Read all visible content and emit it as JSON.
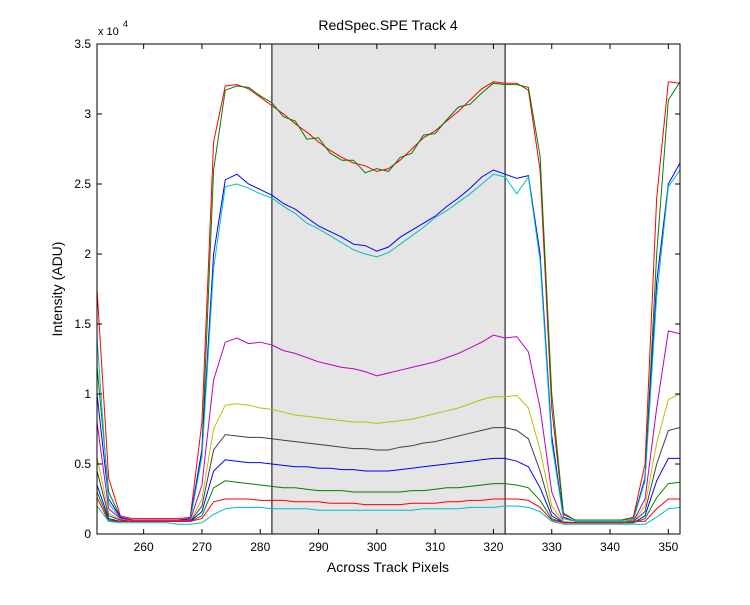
{
  "chart_data": {
    "type": "line",
    "title": "RedSpec.SPE   Track 4",
    "x_label": "Across Track Pixels",
    "y_label": "Intensity (ADU)",
    "y_multiplier": {
      "base": "x 10",
      "exponent": "4"
    },
    "xlim": [
      252,
      352
    ],
    "ylim": [
      0,
      35000
    ],
    "xticks": [
      260,
      270,
      280,
      290,
      300,
      310,
      320,
      330,
      340,
      350
    ],
    "yticks": [
      {
        "value": 0,
        "label": "0"
      },
      {
        "value": 5000,
        "label": "0.5"
      },
      {
        "value": 10000,
        "label": "1"
      },
      {
        "value": 15000,
        "label": "1.5"
      },
      {
        "value": 20000,
        "label": "2"
      },
      {
        "value": 25000,
        "label": "2.5"
      },
      {
        "value": 30000,
        "label": "3"
      },
      {
        "value": 35000,
        "label": "3.5"
      }
    ],
    "grid": false,
    "shaded_region": [
      282,
      322
    ],
    "shaded_color": "#e5e5e5",
    "x": [
      252,
      254,
      256,
      258,
      260,
      262,
      264,
      266,
      268,
      270,
      272,
      274,
      276,
      278,
      280,
      282,
      284,
      286,
      288,
      290,
      292,
      294,
      296,
      298,
      300,
      302,
      304,
      306,
      308,
      310,
      312,
      314,
      316,
      318,
      320,
      322,
      324,
      326,
      328,
      330,
      332,
      334,
      336,
      338,
      340,
      342,
      344,
      346,
      348,
      350,
      352
    ],
    "series": [
      {
        "color": "#ff0000",
        "values": [
          17500,
          4000,
          1300,
          1100,
          1100,
          1100,
          1100,
          1100,
          1200,
          8000,
          28000,
          32000,
          32100,
          31800,
          31200,
          30600,
          30000,
          29300,
          28700,
          28000,
          27400,
          26900,
          26500,
          26300,
          25900,
          26100,
          26700,
          27500,
          28300,
          28800,
          29500,
          30200,
          31000,
          31800,
          32300,
          32200,
          32200,
          31700,
          26000,
          9000,
          1400,
          1000,
          1000,
          1000,
          1000,
          1000,
          1200,
          5000,
          24000,
          32300,
          32200
        ]
      },
      {
        "color": "#008000",
        "values": [
          12000,
          3000,
          1200,
          1000,
          1000,
          1000,
          1000,
          1000,
          1100,
          6000,
          26000,
          31700,
          32000,
          31900,
          31300,
          30800,
          29800,
          29500,
          28200,
          28300,
          27200,
          26700,
          26700,
          25800,
          26100,
          25900,
          26900,
          27200,
          28500,
          28600,
          29600,
          30500,
          30700,
          31500,
          32200,
          32100,
          32100,
          31900,
          27000,
          10000,
          1500,
          1000,
          1000,
          1000,
          1000,
          1000,
          1100,
          4000,
          20000,
          31000,
          32300
        ]
      },
      {
        "color": "#0000ff",
        "values": [
          10000,
          2500,
          1200,
          1000,
          1000,
          1000,
          1000,
          1000,
          1100,
          6000,
          20000,
          25300,
          25700,
          25000,
          24600,
          24200,
          23600,
          23200,
          22600,
          22000,
          21600,
          21200,
          20700,
          20600,
          20200,
          20500,
          21200,
          21700,
          22200,
          22700,
          23400,
          24000,
          24700,
          25500,
          26000,
          25700,
          25400,
          25600,
          20000,
          7000,
          1200,
          900,
          900,
          900,
          900,
          900,
          1000,
          4000,
          18000,
          25000,
          26500
        ]
      },
      {
        "color": "#00bfbf",
        "values": [
          14000,
          2200,
          1100,
          1000,
          1000,
          1000,
          1000,
          1000,
          1000,
          5500,
          19000,
          24800,
          25000,
          24700,
          24300,
          24000,
          23400,
          22900,
          22200,
          21800,
          21300,
          20800,
          20300,
          20000,
          19800,
          20100,
          20700,
          21300,
          21900,
          22600,
          23100,
          23700,
          24300,
          25000,
          25700,
          25500,
          24300,
          25500,
          19500,
          6500,
          1100,
          900,
          900,
          900,
          900,
          900,
          1000,
          3800,
          17000,
          24800,
          26000
        ]
      },
      {
        "color": "#bf00bf",
        "values": [
          8000,
          1800,
          1100,
          1000,
          1000,
          1000,
          1000,
          1000,
          1000,
          3500,
          11000,
          13700,
          14000,
          13600,
          13700,
          13500,
          13100,
          12900,
          12600,
          12300,
          12100,
          11900,
          11800,
          11600,
          11300,
          11500,
          11700,
          11900,
          12100,
          12300,
          12600,
          12900,
          13300,
          13700,
          14200,
          14000,
          14100,
          13000,
          9000,
          3000,
          900,
          800,
          800,
          800,
          800,
          800,
          900,
          2500,
          9000,
          14500,
          14300
        ]
      },
      {
        "color": "#bfbf00",
        "values": [
          5500,
          1500,
          1000,
          900,
          900,
          900,
          900,
          900,
          900,
          2500,
          7500,
          9200,
          9300,
          9200,
          9000,
          8900,
          8700,
          8500,
          8400,
          8300,
          8200,
          8100,
          8000,
          8000,
          7900,
          8000,
          8100,
          8200,
          8400,
          8600,
          8800,
          9000,
          9300,
          9600,
          9800,
          9800,
          9900,
          9000,
          6000,
          2000,
          900,
          800,
          800,
          800,
          800,
          800,
          900,
          2000,
          6500,
          9600,
          10000
        ]
      },
      {
        "color": "#404040",
        "values": [
          4500,
          1300,
          1000,
          900,
          900,
          900,
          900,
          900,
          900,
          2000,
          6000,
          7100,
          7000,
          6900,
          6900,
          6800,
          6700,
          6600,
          6500,
          6400,
          6300,
          6200,
          6100,
          6100,
          6000,
          6000,
          6200,
          6300,
          6500,
          6600,
          6800,
          7000,
          7200,
          7400,
          7600,
          7600,
          7400,
          6800,
          4500,
          1600,
          800,
          800,
          800,
          800,
          800,
          800,
          900,
          1600,
          5000,
          7400,
          7600
        ]
      },
      {
        "color": "#0000ff",
        "values": [
          3500,
          1100,
          900,
          900,
          900,
          900,
          900,
          900,
          900,
          1600,
          4500,
          5300,
          5200,
          5100,
          5100,
          5000,
          4900,
          4800,
          4800,
          4700,
          4700,
          4600,
          4600,
          4500,
          4500,
          4500,
          4600,
          4700,
          4800,
          4900,
          5000,
          5100,
          5200,
          5300,
          5400,
          5400,
          5200,
          4800,
          3300,
          1300,
          800,
          800,
          800,
          800,
          800,
          800,
          800,
          1300,
          3800,
          5400,
          5400
        ]
      },
      {
        "color": "#008000",
        "values": [
          3000,
          1000,
          900,
          900,
          900,
          900,
          900,
          900,
          900,
          1300,
          3300,
          3800,
          3700,
          3600,
          3500,
          3400,
          3300,
          3300,
          3200,
          3100,
          3100,
          3100,
          3000,
          3000,
          3000,
          3000,
          3000,
          3100,
          3100,
          3200,
          3300,
          3300,
          3400,
          3500,
          3600,
          3600,
          3500,
          3300,
          2400,
          1100,
          800,
          800,
          800,
          800,
          800,
          800,
          800,
          1100,
          2600,
          3600,
          3700
        ]
      },
      {
        "color": "#ff0000",
        "values": [
          2600,
          900,
          900,
          900,
          900,
          900,
          900,
          900,
          900,
          1100,
          2300,
          2500,
          2500,
          2500,
          2400,
          2400,
          2400,
          2300,
          2300,
          2300,
          2200,
          2200,
          2200,
          2100,
          2100,
          2100,
          2100,
          2200,
          2200,
          2200,
          2300,
          2300,
          2400,
          2400,
          2500,
          2500,
          2500,
          2400,
          1900,
          1000,
          800,
          800,
          800,
          800,
          800,
          800,
          900,
          900,
          1800,
          2500,
          2500
        ]
      },
      {
        "color": "#00bfbf",
        "values": [
          2000,
          900,
          800,
          800,
          800,
          800,
          800,
          700,
          700,
          800,
          1400,
          1800,
          1900,
          1900,
          1900,
          1800,
          1800,
          1800,
          1800,
          1700,
          1700,
          1700,
          1700,
          1700,
          1700,
          1700,
          1700,
          1700,
          1800,
          1800,
          1800,
          1800,
          1900,
          1900,
          1900,
          2000,
          2000,
          1900,
          1600,
          900,
          700,
          700,
          700,
          700,
          700,
          700,
          700,
          700,
          1200,
          1800,
          1900
        ]
      }
    ]
  }
}
